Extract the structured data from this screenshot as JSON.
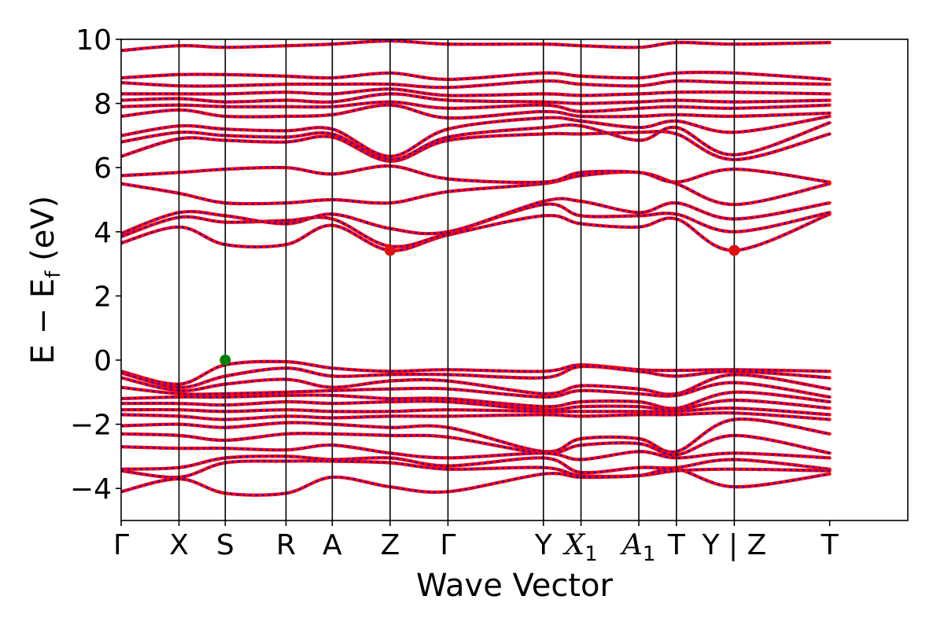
{
  "chart_data": {
    "type": "line",
    "title": "",
    "xlabel": "Wave Vector",
    "ylabel": "E − E_f (eV)",
    "ylabel_parts": {
      "lead": "E − E",
      "sub": "f",
      "tail": " (eV)"
    },
    "ylim": [
      -5,
      10
    ],
    "yticks": [
      -4,
      -2,
      0,
      2,
      4,
      6,
      8,
      10
    ],
    "ytick_labels": [
      "−4",
      "−2",
      "0",
      "2",
      "4",
      "6",
      "8",
      "10"
    ],
    "xlim": [
      0,
      13.6
    ],
    "high_symmetry_points": [
      {
        "label": "Γ",
        "x": 0
      },
      {
        "label": "X",
        "x": 1.0
      },
      {
        "label": "S",
        "x": 1.8
      },
      {
        "label": "R",
        "x": 2.85
      },
      {
        "label": "A",
        "x": 3.65
      },
      {
        "label": "Z",
        "x": 4.65
      },
      {
        "label": "Γ",
        "x": 5.65
      },
      {
        "label": "Y",
        "x": 7.3
      },
      {
        "label": "X",
        "sub": "1",
        "x": 7.95
      },
      {
        "label": "A",
        "sub": "1",
        "x": 8.95
      },
      {
        "label": "T",
        "x": 9.6
      },
      {
        "label": "Y | Z",
        "x": 10.6
      },
      {
        "label": "T",
        "x": 12.25
      }
    ],
    "series": [
      {
        "role": "spin-up",
        "color": "#ff0000",
        "style": "solid"
      },
      {
        "role": "spin-down",
        "color": "#0000ff",
        "style": "dotted"
      }
    ],
    "markers": [
      {
        "role": "vbm",
        "x": 1.8,
        "y": 0.0,
        "color": "#008000"
      },
      {
        "role": "cbm",
        "x": 4.65,
        "y": 3.42,
        "color": "#dd1111"
      },
      {
        "role": "cbm",
        "x": 10.6,
        "y": 3.42,
        "color": "#dd1111"
      }
    ],
    "valence_bands": [
      [
        -0.35,
        -0.75,
        -0.15,
        -0.05,
        -0.25,
        -0.35,
        -0.3,
        -0.35,
        -0.15,
        -0.3,
        -0.32,
        -0.3,
        -0.35
      ],
      [
        -0.4,
        -0.85,
        -0.5,
        -0.25,
        -0.5,
        -0.45,
        -0.45,
        -0.55,
        -0.2,
        -0.35,
        -0.5,
        -0.35,
        -0.55
      ],
      [
        -0.55,
        -0.95,
        -0.75,
        -0.6,
        -0.85,
        -0.65,
        -0.65,
        -1.05,
        -0.8,
        -0.9,
        -1.05,
        -0.45,
        -0.9
      ],
      [
        -0.85,
        -1.05,
        -1.05,
        -1.0,
        -0.95,
        -0.9,
        -0.9,
        -1.15,
        -0.95,
        -1.05,
        -1.1,
        -0.7,
        -1.15
      ],
      [
        -1.2,
        -1.15,
        -1.15,
        -1.1,
        -1.1,
        -1.2,
        -1.2,
        -1.45,
        -1.3,
        -1.3,
        -1.5,
        -1.0,
        -1.3
      ],
      [
        -1.35,
        -1.35,
        -1.4,
        -1.3,
        -1.35,
        -1.3,
        -1.3,
        -1.55,
        -1.45,
        -1.45,
        -1.55,
        -1.25,
        -1.5
      ],
      [
        -1.55,
        -1.55,
        -1.6,
        -1.55,
        -1.6,
        -1.6,
        -1.55,
        -1.6,
        -1.6,
        -1.6,
        -1.6,
        -1.5,
        -1.7
      ],
      [
        -1.7,
        -1.75,
        -1.85,
        -1.75,
        -1.8,
        -1.75,
        -1.75,
        -1.7,
        -1.75,
        -1.7,
        -1.7,
        -1.65,
        -1.85
      ],
      [
        -2.05,
        -2.0,
        -2.1,
        -1.95,
        -2.0,
        -2.1,
        -2.1,
        -2.85,
        -2.45,
        -2.45,
        -2.85,
        -1.85,
        -2.3
      ],
      [
        -2.3,
        -2.35,
        -2.5,
        -2.3,
        -2.3,
        -2.35,
        -2.4,
        -2.9,
        -2.65,
        -2.6,
        -2.95,
        -2.35,
        -2.9
      ],
      [
        -2.7,
        -2.75,
        -2.75,
        -2.8,
        -2.65,
        -2.9,
        -3.05,
        -2.9,
        -3.1,
        -2.85,
        -3.05,
        -2.9,
        -3.05
      ],
      [
        -3.4,
        -3.35,
        -3.05,
        -3.0,
        -3.1,
        -3.05,
        -3.3,
        -3.05,
        -3.5,
        -3.35,
        -3.35,
        -3.1,
        -3.4
      ],
      [
        -3.45,
        -3.65,
        -3.2,
        -3.15,
        -3.15,
        -3.2,
        -3.4,
        -3.35,
        -3.6,
        -3.6,
        -3.45,
        -3.4,
        -3.45
      ],
      [
        -4.1,
        -3.7,
        -4.15,
        -4.15,
        -3.65,
        -3.95,
        -4.1,
        -3.55,
        -3.65,
        -3.6,
        -3.4,
        -3.95,
        -3.55
      ]
    ],
    "conduction_bands": [
      [
        3.65,
        4.15,
        3.6,
        3.6,
        4.2,
        3.42,
        3.9,
        4.5,
        4.25,
        4.15,
        4.4,
        3.42,
        4.55
      ],
      [
        3.85,
        4.45,
        4.3,
        4.35,
        4.4,
        3.55,
        3.95,
        4.85,
        4.5,
        4.5,
        4.55,
        4.0,
        4.6
      ],
      [
        3.95,
        4.6,
        4.5,
        4.25,
        4.55,
        4.1,
        4.0,
        4.95,
        4.95,
        4.6,
        4.9,
        4.4,
        4.9
      ],
      [
        5.5,
        5.2,
        4.9,
        4.9,
        5.0,
        4.9,
        5.25,
        5.5,
        5.75,
        5.85,
        5.5,
        4.85,
        5.5
      ],
      [
        5.75,
        5.85,
        5.95,
        6.0,
        5.8,
        6.05,
        5.65,
        5.55,
        5.85,
        5.85,
        5.55,
        5.95,
        5.55
      ],
      [
        6.35,
        6.9,
        6.85,
        6.8,
        6.95,
        6.2,
        6.85,
        7.05,
        7.05,
        7.1,
        7.05,
        6.25,
        7.05
      ],
      [
        6.8,
        7.1,
        7.0,
        6.95,
        7.05,
        6.25,
        6.95,
        7.25,
        7.3,
        6.85,
        7.25,
        6.4,
        7.4
      ],
      [
        7.0,
        7.3,
        7.2,
        7.15,
        7.2,
        6.35,
        7.2,
        7.55,
        7.45,
        7.25,
        7.45,
        7.1,
        7.6
      ],
      [
        7.6,
        7.8,
        7.6,
        7.6,
        7.65,
        7.95,
        7.55,
        7.75,
        7.6,
        7.6,
        7.65,
        7.6,
        7.7
      ],
      [
        7.9,
        7.95,
        7.9,
        7.9,
        7.9,
        8.05,
        7.85,
        7.95,
        7.75,
        7.85,
        7.9,
        7.85,
        7.95
      ],
      [
        8.1,
        8.15,
        8.05,
        8.1,
        8.05,
        8.3,
        8.1,
        8.05,
        8.0,
        8.05,
        8.1,
        8.05,
        8.1
      ],
      [
        8.3,
        8.3,
        8.3,
        8.35,
        8.3,
        8.45,
        8.25,
        8.3,
        8.25,
        8.3,
        8.35,
        8.35,
        8.3
      ],
      [
        8.65,
        8.55,
        8.55,
        8.6,
        8.6,
        8.6,
        8.5,
        8.7,
        8.6,
        8.55,
        8.7,
        8.65,
        8.6
      ],
      [
        8.8,
        8.9,
        8.9,
        8.85,
        8.8,
        8.95,
        8.75,
        8.95,
        8.85,
        8.8,
        8.95,
        8.95,
        8.75
      ],
      [
        9.65,
        9.8,
        9.75,
        9.8,
        9.85,
        9.95,
        9.85,
        9.85,
        9.8,
        9.75,
        9.9,
        9.85,
        9.9
      ]
    ]
  }
}
